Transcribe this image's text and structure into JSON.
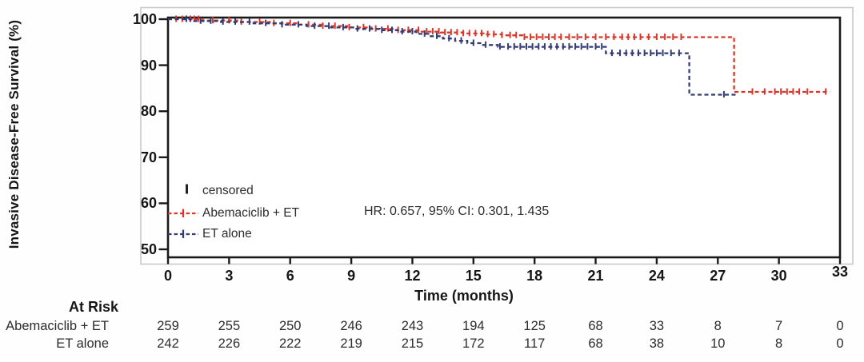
{
  "legend": {
    "censored_label": "censored",
    "series_1_label": "Abemaciclib + ET",
    "series_2_label": "ET alone"
  },
  "chart_data": {
    "type": "line",
    "subtype": "kaplan-meier-step",
    "title": "",
    "ylabel": "Invasive Disease-Free Survival (%)",
    "xlabel": "Time (months)",
    "annotation": "HR: 0.657, 95% CI: 0.301, 1.435",
    "xlim": [
      0,
      33
    ],
    "ylim": [
      50,
      100
    ],
    "xticks": [
      0,
      3,
      6,
      9,
      12,
      15,
      18,
      21,
      24,
      27,
      30,
      33
    ],
    "yticks": [
      100,
      90,
      80,
      70,
      60,
      50
    ],
    "grid": false,
    "legend_position": "lower-left-inside",
    "frame_color": "#1a1a1a",
    "outer_frame_color": "#c9c9c9",
    "censor_color": "#1a1a1a",
    "series": [
      {
        "name": "Abemaciclib + ET",
        "color": "#d8382b",
        "line_style": "dashed",
        "steps": [
          [
            0,
            100
          ],
          [
            1.7,
            99.7
          ],
          [
            3.4,
            99.4
          ],
          [
            5.0,
            99.1
          ],
          [
            6.4,
            98.8
          ],
          [
            7.6,
            98.5
          ],
          [
            8.8,
            98.2
          ],
          [
            10.0,
            97.9
          ],
          [
            11.2,
            97.6
          ],
          [
            12.4,
            97.3
          ],
          [
            13.4,
            97.1
          ],
          [
            14.5,
            96.9
          ],
          [
            15.5,
            96.7
          ],
          [
            16.4,
            96.5
          ],
          [
            17.4,
            96.1
          ],
          [
            27.8,
            84.2
          ],
          [
            32.5,
            84.2
          ]
        ],
        "censor_times": [
          0.4,
          0.7,
          0.9,
          1.1,
          1.3,
          1.5,
          2.2,
          3.0,
          3.6,
          4.5,
          5.2,
          6.0,
          6.9,
          7.6,
          8.2,
          8.9,
          9.6,
          10.2,
          10.8,
          11.3,
          11.8,
          12.3,
          12.7,
          13.0,
          13.3,
          13.6,
          13.9,
          14.2,
          14.5,
          14.8,
          15.1,
          15.4,
          15.7,
          16.0,
          16.4,
          16.8,
          17.1,
          17.5,
          17.8,
          18.1,
          18.4,
          18.7,
          19.0,
          19.3,
          19.7,
          20.1,
          20.5,
          21.0,
          21.5,
          21.9,
          22.3,
          22.6,
          22.9,
          23.2,
          23.6,
          24.0,
          24.4,
          24.8,
          25.2,
          28.7,
          29.3,
          29.8,
          30.1,
          30.4,
          30.7,
          31.0,
          31.4,
          32.3
        ]
      },
      {
        "name": "ET alone",
        "color": "#343c74",
        "line_style": "dashed",
        "steps": [
          [
            0,
            100
          ],
          [
            1.1,
            99.6
          ],
          [
            2.6,
            99.4
          ],
          [
            4.2,
            99.1
          ],
          [
            5.6,
            98.8
          ],
          [
            6.8,
            98.5
          ],
          [
            8.0,
            98.2
          ],
          [
            9.2,
            97.9
          ],
          [
            10.4,
            97.6
          ],
          [
            11.4,
            97.3
          ],
          [
            12.2,
            96.8
          ],
          [
            12.9,
            96.3
          ],
          [
            13.5,
            95.8
          ],
          [
            14.1,
            95.3
          ],
          [
            14.7,
            94.8
          ],
          [
            15.4,
            94.4
          ],
          [
            16.2,
            94.0
          ],
          [
            21.5,
            92.6
          ],
          [
            25.6,
            83.6
          ],
          [
            27.9,
            83.6
          ]
        ],
        "censor_times": [
          0.9,
          1.6,
          2.1,
          2.7,
          3.3,
          4.0,
          4.8,
          5.6,
          6.4,
          7.2,
          7.9,
          8.6,
          9.3,
          9.9,
          10.5,
          11.0,
          11.5,
          12.0,
          12.6,
          13.2,
          13.8,
          14.4,
          15.0,
          15.6,
          16.3,
          16.7,
          17.0,
          17.3,
          17.6,
          17.9,
          18.2,
          18.5,
          18.8,
          19.1,
          19.4,
          19.7,
          20.0,
          20.3,
          20.6,
          21.0,
          21.3,
          21.8,
          22.2,
          22.5,
          22.8,
          23.1,
          23.4,
          23.7,
          24.0,
          24.3,
          24.7,
          25.1,
          27.3
        ]
      }
    ],
    "at_risk": {
      "title": "At Risk",
      "time_points": [
        0,
        3,
        6,
        9,
        12,
        15,
        18,
        21,
        24,
        27,
        30,
        33
      ],
      "rows": [
        {
          "label": "Abemaciclib + ET",
          "values": [
            259,
            255,
            250,
            246,
            243,
            194,
            125,
            68,
            33,
            8,
            7,
            0
          ]
        },
        {
          "label": "ET alone",
          "values": [
            242,
            226,
            222,
            219,
            215,
            172,
            117,
            68,
            38,
            10,
            8,
            0
          ]
        }
      ]
    }
  }
}
